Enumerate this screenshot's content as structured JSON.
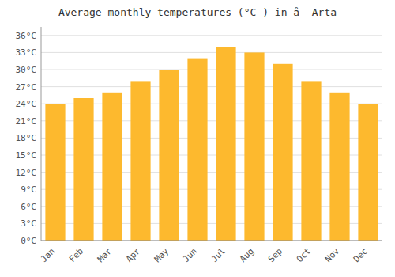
{
  "chart_data": {
    "type": "bar",
    "title": "Average monthly temperatures (°C ) in å  Arta",
    "categories": [
      "Jan",
      "Feb",
      "Mar",
      "Apr",
      "May",
      "Jun",
      "Jul",
      "Aug",
      "Sep",
      "Oct",
      "Nov",
      "Dec"
    ],
    "values": [
      24.0,
      25.0,
      26.0,
      28.0,
      30.0,
      32.0,
      34.0,
      33.0,
      31.0,
      28.0,
      26.0,
      24.0
    ],
    "color": "#FDB92E",
    "ylim": [
      0,
      37.5
    ],
    "yticks": [
      {
        "value": 0,
        "label": "0°C"
      },
      {
        "value": 3,
        "label": "3°C"
      },
      {
        "value": 6,
        "label": "6°C"
      },
      {
        "value": 9,
        "label": "9°C"
      },
      {
        "value": 12,
        "label": "12°C"
      },
      {
        "value": 15,
        "label": "15°C"
      },
      {
        "value": 18,
        "label": "18°C"
      },
      {
        "value": 21,
        "label": "21°C"
      },
      {
        "value": 24,
        "label": "24°C"
      },
      {
        "value": 27,
        "label": "27°C"
      },
      {
        "value": 30,
        "label": "30°C"
      },
      {
        "value": 33,
        "label": "33°C"
      },
      {
        "value": 36,
        "label": "36°C"
      }
    ],
    "grid": true
  }
}
